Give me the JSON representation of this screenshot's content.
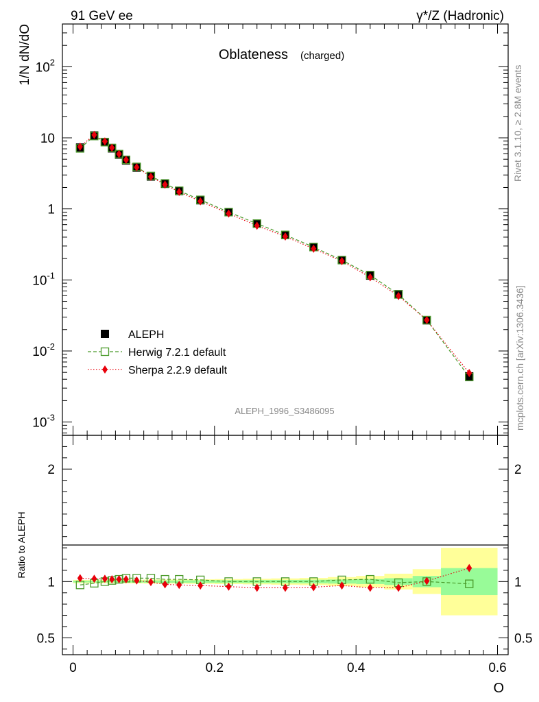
{
  "header": {
    "left": "91 GeV ee",
    "right": "γ*/Z (Hadronic)"
  },
  "side": {
    "rivet": "Rivet 3.1.10, ≥ 2.8M events",
    "mcplots": "mcplots.cern.ch [arXiv:1306.3436]"
  },
  "chart_data": [
    {
      "type": "scatter",
      "title": "Oblateness",
      "subtitle": "(charged)",
      "ylabel": "1/N dN/dO",
      "watermark": "ALEPH_1996_S3486095",
      "log_y": true,
      "xlim": [
        -0.015,
        0.615
      ],
      "ylim": [
        0.00065,
        400
      ],
      "y_ticks": [
        {
          "value": 0.001,
          "mant": "10",
          "exp": "-3"
        },
        {
          "value": 0.01,
          "mant": "10",
          "exp": "-2"
        },
        {
          "value": 0.1,
          "mant": "10",
          "exp": "-1"
        },
        {
          "value": 1,
          "mant": "1",
          "exp": ""
        },
        {
          "value": 10,
          "mant": "10",
          "exp": ""
        },
        {
          "value": 100,
          "mant": "10",
          "exp": "2"
        }
      ],
      "legend_position": "bottom-left",
      "x": [
        0.01,
        0.03,
        0.045,
        0.055,
        0.065,
        0.075,
        0.09,
        0.11,
        0.13,
        0.15,
        0.18,
        0.22,
        0.26,
        0.3,
        0.34,
        0.38,
        0.42,
        0.46,
        0.5,
        0.56
      ],
      "series": [
        {
          "name": "ALEPH",
          "color": "#000000",
          "marker": "filled-square",
          "values": [
            7.3,
            10.8,
            8.7,
            7.1,
            5.8,
            4.8,
            3.8,
            2.85,
            2.25,
            1.78,
            1.32,
            0.9,
            0.62,
            0.43,
            0.29,
            0.19,
            0.115,
            0.063,
            0.027,
            0.0044
          ]
        },
        {
          "name": "Herwig 7.2.1 default",
          "color": "#4a9a2a",
          "marker": "open-square",
          "line": "dashed",
          "values": [
            7.1,
            10.6,
            8.7,
            7.2,
            5.9,
            4.9,
            3.9,
            2.9,
            2.28,
            1.8,
            1.34,
            0.9,
            0.62,
            0.43,
            0.29,
            0.19,
            0.117,
            0.0625,
            0.0272,
            0.0043
          ]
        },
        {
          "name": "Sherpa 2.2.9 default",
          "color": "#e8000b",
          "marker": "filled-diamond",
          "line": "dotted",
          "values": [
            7.5,
            11.0,
            8.9,
            7.25,
            5.92,
            4.9,
            3.85,
            2.83,
            2.2,
            1.73,
            1.28,
            0.86,
            0.58,
            0.408,
            0.275,
            0.184,
            0.109,
            0.0595,
            0.0272,
            0.0049
          ]
        }
      ]
    },
    {
      "type": "scatter",
      "ylabel": "Ratio to ALEPH",
      "xlabel": "O",
      "xlim": [
        -0.015,
        0.615
      ],
      "ylim": [
        0.35,
        2.3
      ],
      "x_ticks": [
        0,
        0.2,
        0.4,
        0.6
      ],
      "x_tick_labels": [
        "0",
        "0.2",
        "0.4",
        "0.6"
      ],
      "y_ticks": [
        0.5,
        1,
        2
      ],
      "y_tick_labels": [
        "0.5",
        "1",
        "2"
      ],
      "bands": {
        "bins": [
          [
            0.0,
            0.02
          ],
          [
            0.02,
            0.04
          ],
          [
            0.04,
            0.05
          ],
          [
            0.05,
            0.06
          ],
          [
            0.06,
            0.07
          ],
          [
            0.07,
            0.08
          ],
          [
            0.08,
            0.1
          ],
          [
            0.1,
            0.12
          ],
          [
            0.12,
            0.14
          ],
          [
            0.14,
            0.16
          ],
          [
            0.16,
            0.2
          ],
          [
            0.2,
            0.24
          ],
          [
            0.24,
            0.28
          ],
          [
            0.28,
            0.32
          ],
          [
            0.32,
            0.36
          ],
          [
            0.36,
            0.4
          ],
          [
            0.4,
            0.44
          ],
          [
            0.44,
            0.48
          ],
          [
            0.48,
            0.52
          ],
          [
            0.52,
            0.6
          ]
        ],
        "stat": [
          0.008,
          0.008,
          0.008,
          0.008,
          0.009,
          0.009,
          0.009,
          0.01,
          0.01,
          0.01,
          0.011,
          0.012,
          0.013,
          0.014,
          0.016,
          0.018,
          0.022,
          0.03,
          0.05,
          0.12
        ],
        "total": [
          0.015,
          0.015,
          0.015,
          0.015,
          0.016,
          0.016,
          0.016,
          0.018,
          0.018,
          0.018,
          0.02,
          0.022,
          0.025,
          0.028,
          0.032,
          0.04,
          0.05,
          0.07,
          0.11,
          0.3
        ],
        "stat_color": "#98fb98",
        "total_color": "#ffff99"
      },
      "series": [
        {
          "name": "Herwig 7.2.1 default",
          "values": [
            0.97,
            0.985,
            1.0,
            1.01,
            1.02,
            1.03,
            1.03,
            1.03,
            1.02,
            1.02,
            1.015,
            1.0,
            1.0,
            1.0,
            1.0,
            1.015,
            1.02,
            0.99,
            1.0,
            0.98
          ]
        },
        {
          "name": "Sherpa 2.2.9 default",
          "values": [
            1.03,
            1.025,
            1.025,
            1.02,
            1.02,
            1.02,
            1.01,
            0.995,
            0.975,
            0.97,
            0.965,
            0.955,
            0.945,
            0.945,
            0.95,
            0.965,
            0.945,
            0.945,
            1.005,
            1.12
          ]
        }
      ]
    }
  ]
}
